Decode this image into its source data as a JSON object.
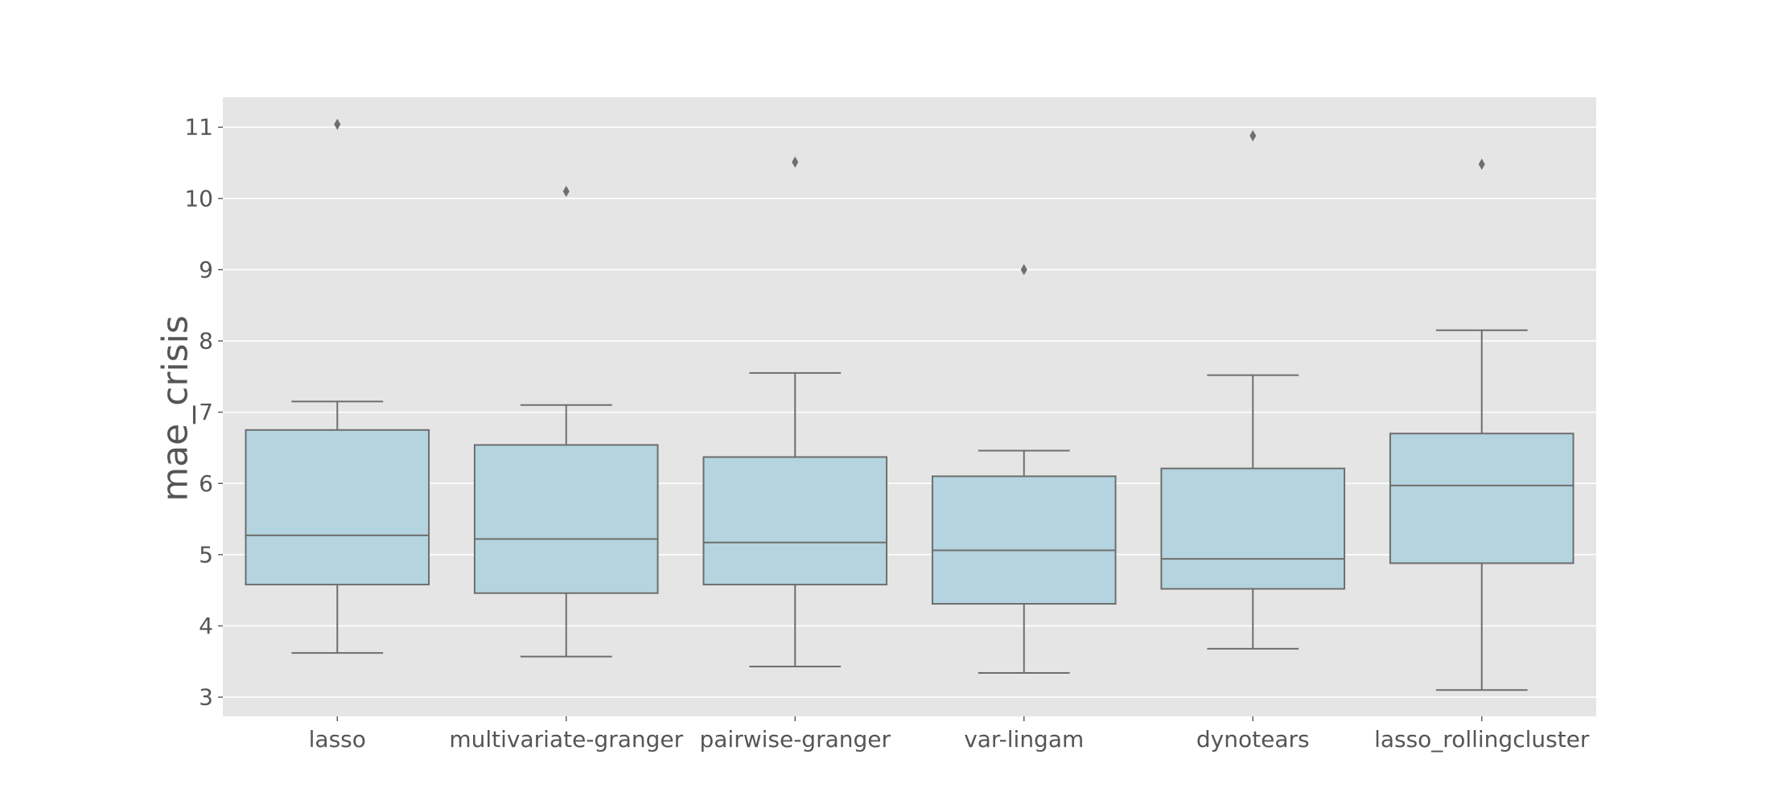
{
  "chart_data": {
    "type": "box",
    "title": "",
    "xlabel": "",
    "ylabel": "mae_crisis",
    "ylim": [
      2.73,
      11.42
    ],
    "yticks": [
      3,
      4,
      5,
      6,
      7,
      8,
      9,
      10,
      11
    ],
    "grid": true,
    "colors": {
      "background": "#e5e5e5",
      "box_fill": "#b4d4df",
      "line": "#6e6e6e",
      "grid": "#ffffff"
    },
    "categories": [
      "lasso",
      "multivariate-granger",
      "pairwise-granger",
      "var-lingam",
      "dynotears",
      "lasso_rollingcluster"
    ],
    "boxes": [
      {
        "whisker_low": 3.62,
        "q1": 4.58,
        "median": 5.27,
        "q3": 6.75,
        "whisker_high": 7.15,
        "outliers": [
          11.04
        ]
      },
      {
        "whisker_low": 3.57,
        "q1": 4.46,
        "median": 5.22,
        "q3": 6.54,
        "whisker_high": 7.1,
        "outliers": [
          10.1
        ]
      },
      {
        "whisker_low": 3.43,
        "q1": 4.58,
        "median": 5.17,
        "q3": 6.37,
        "whisker_high": 7.55,
        "outliers": [
          10.51
        ]
      },
      {
        "whisker_low": 3.34,
        "q1": 4.31,
        "median": 5.06,
        "q3": 6.1,
        "whisker_high": 6.46,
        "outliers": [
          9.0
        ]
      },
      {
        "whisker_low": 3.68,
        "q1": 4.52,
        "median": 4.94,
        "q3": 6.21,
        "whisker_high": 7.52,
        "outliers": [
          10.88
        ]
      },
      {
        "whisker_low": 3.1,
        "q1": 4.88,
        "median": 5.97,
        "q3": 6.7,
        "whisker_high": 8.15,
        "outliers": [
          10.48
        ]
      }
    ]
  }
}
